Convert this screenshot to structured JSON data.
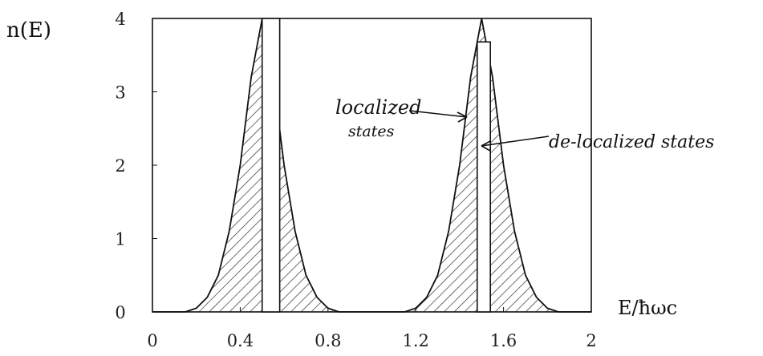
{
  "chart_data": {
    "type": "area",
    "ylabel": "n(E)",
    "xlabel": "E/ħωc",
    "xlim": [
      0,
      2
    ],
    "ylim": [
      0,
      4
    ],
    "x_ticks": [
      "0",
      "0.4",
      "0.8",
      "1.2",
      "1.6",
      "2"
    ],
    "y_ticks": [
      "0",
      "1",
      "2",
      "3",
      "4"
    ],
    "grid": false,
    "series": [
      {
        "peaks_at": [
          0.5,
          1.5
        ],
        "peak_value": 4,
        "x": [
          0.0,
          0.15,
          0.2,
          0.25,
          0.3,
          0.35,
          0.4,
          0.45,
          0.5,
          0.55,
          0.6,
          0.65,
          0.7,
          0.75,
          0.8,
          0.85,
          1.0,
          1.15,
          1.2,
          1.25,
          1.3,
          1.35,
          1.4,
          1.45,
          1.5,
          1.55,
          1.6,
          1.65,
          1.7,
          1.75,
          1.8,
          1.85,
          2.0
        ],
        "y": [
          0.0,
          0.0,
          0.05,
          0.2,
          0.5,
          1.1,
          2.0,
          3.2,
          4.0,
          3.2,
          2.0,
          1.1,
          0.5,
          0.2,
          0.05,
          0.0,
          0.0,
          0.0,
          0.05,
          0.2,
          0.5,
          1.1,
          2.0,
          3.2,
          4.0,
          3.2,
          2.0,
          1.1,
          0.5,
          0.2,
          0.05,
          0.0,
          0.0
        ]
      }
    ],
    "delocalized_bands": [
      [
        0.5,
        0.58
      ],
      [
        1.48,
        1.54
      ]
    ],
    "annotations": [
      {
        "line1": "localized",
        "line2": "states"
      },
      {
        "text": "de-localized states"
      }
    ]
  }
}
